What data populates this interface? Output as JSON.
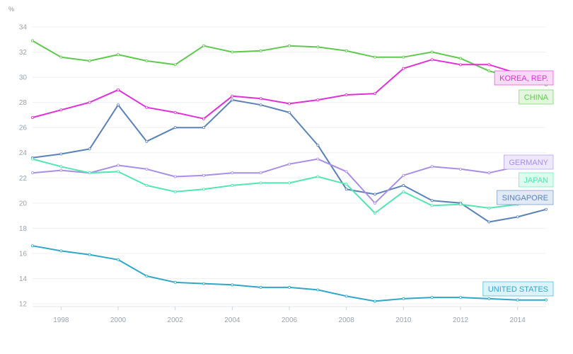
{
  "chart_data": {
    "type": "line",
    "title": "",
    "xlabel": "",
    "ylabel": "%",
    "ylim": [
      12,
      34
    ],
    "xlim": [
      1997,
      2015
    ],
    "y_ticks": [
      "12",
      "14",
      "16",
      "18",
      "20",
      "22",
      "24",
      "26",
      "28",
      "30",
      "32",
      "34"
    ],
    "x_ticks": [
      "1998",
      "2000",
      "2002",
      "2004",
      "2006",
      "2008",
      "2010",
      "2012",
      "2014"
    ],
    "grid": true,
    "x": [
      1997,
      1998,
      1999,
      2000,
      2001,
      2002,
      2003,
      2004,
      2005,
      2006,
      2007,
      2008,
      2009,
      2010,
      2011,
      2012,
      2013,
      2014,
      2015
    ],
    "series": [
      {
        "name": "CHINA",
        "color": "#5fc94f",
        "label_bg": "#e3f6de",
        "label_border": "#5fc94f",
        "values": [
          32.9,
          31.6,
          31.3,
          31.8,
          31.3,
          31.0,
          32.5,
          32.0,
          32.1,
          32.5,
          32.4,
          32.1,
          31.6,
          31.6,
          32.0,
          31.5,
          30.5,
          29.9,
          29.4
        ]
      },
      {
        "name": "KOREA, REP.",
        "color": "#e030d8",
        "label_bg": "#fbd9f8",
        "label_border": "#e030d8",
        "values": [
          26.8,
          27.4,
          28.0,
          29.0,
          27.6,
          27.2,
          26.7,
          28.5,
          28.3,
          27.9,
          28.2,
          28.6,
          28.7,
          30.7,
          31.4,
          31.0,
          31.0,
          30.3,
          29.8
        ]
      },
      {
        "name": "SINGAPORE",
        "color": "#5a82b8",
        "label_bg": "#e2eaf5",
        "label_border": "#5a82b8",
        "values": [
          23.6,
          23.9,
          24.3,
          27.8,
          24.9,
          26.0,
          26.0,
          28.2,
          27.8,
          27.2,
          24.6,
          21.1,
          20.7,
          21.4,
          20.2,
          20.0,
          18.5,
          18.9,
          19.5
        ]
      },
      {
        "name": "GERMANY",
        "color": "#a98ee6",
        "label_bg": "#eee8fb",
        "label_border": "#a98ee6",
        "values": [
          22.4,
          22.6,
          22.4,
          23.0,
          22.7,
          22.1,
          22.2,
          22.4,
          22.4,
          23.1,
          23.5,
          22.5,
          20.0,
          22.2,
          22.9,
          22.7,
          22.4,
          22.9,
          23.0
        ]
      },
      {
        "name": "JAPAN",
        "color": "#52e6b0",
        "label_bg": "#ddfbee",
        "label_border": "#52e6b0",
        "values": [
          23.5,
          22.9,
          22.4,
          22.5,
          21.4,
          20.9,
          21.1,
          21.4,
          21.6,
          21.6,
          22.1,
          21.5,
          19.2,
          20.9,
          19.8,
          19.9,
          19.6,
          19.9,
          20.1
        ]
      },
      {
        "name": "UNITED STATES",
        "color": "#2fa7c9",
        "label_bg": "#dbf3fb",
        "label_border": "#2fa7c9",
        "values": [
          16.6,
          16.2,
          15.9,
          15.5,
          14.2,
          13.7,
          13.6,
          13.5,
          13.3,
          13.3,
          13.1,
          12.6,
          12.2,
          12.4,
          12.5,
          12.5,
          12.4,
          12.3,
          12.3
        ]
      }
    ]
  }
}
